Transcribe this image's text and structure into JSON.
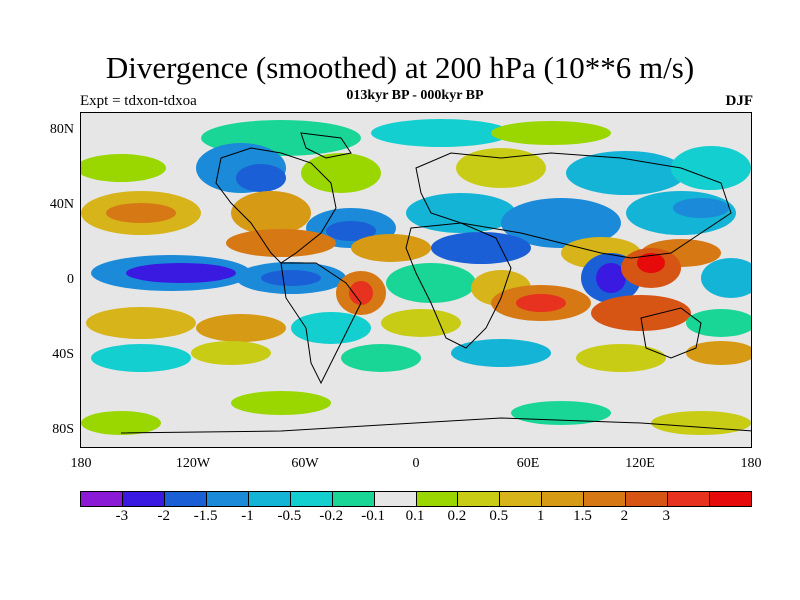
{
  "title": "Divergence (smoothed) at 200 hPa (10**6 m/s)",
  "subtitle": "013kyr BP - 000kyr BP",
  "expt_label": "Expt = tdxon-tdxoa",
  "season_label": "DJF",
  "y_ticks": [
    "80N",
    "40N",
    "0",
    "40S",
    "80S"
  ],
  "x_ticks": [
    "180",
    "120W",
    "60W",
    "0",
    "60E",
    "120E",
    "180"
  ],
  "colorbar": {
    "colors": [
      "#8a1ad6",
      "#3a1ae0",
      "#1a5fd6",
      "#1a8ad9",
      "#14b4d6",
      "#14cfcf",
      "#1ad696",
      "#e6e6e6",
      "#9ad600",
      "#c8cc14",
      "#d6b41a",
      "#d69a14",
      "#d67814",
      "#d65414",
      "#e6321e",
      "#e60a0a"
    ],
    "labels": [
      "-3",
      "-2",
      "-1.5",
      "-1",
      "-0.5",
      "-0.2",
      "-0.1",
      "0.1",
      "0.2",
      "0.5",
      "1",
      "1.5",
      "2",
      "3"
    ]
  }
}
